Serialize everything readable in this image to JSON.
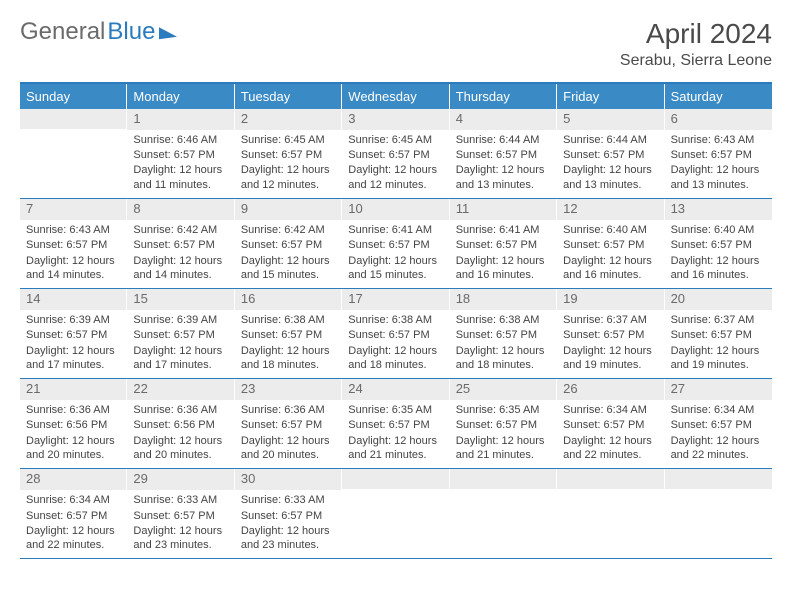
{
  "logo": {
    "text1": "General",
    "text2": "Blue"
  },
  "title": "April 2024",
  "location": "Serabu, Sierra Leone",
  "day_headers": [
    "Sunday",
    "Monday",
    "Tuesday",
    "Wednesday",
    "Thursday",
    "Friday",
    "Saturday"
  ],
  "colors": {
    "header_bg": "#3a8ac5",
    "border": "#2b7bbf",
    "daynum_bg": "#ececec",
    "text_gray": "#6a6a6a"
  },
  "weeks": [
    [
      {
        "n": "",
        "sr": "",
        "ss": "",
        "dl": ""
      },
      {
        "n": "1",
        "sr": "Sunrise: 6:46 AM",
        "ss": "Sunset: 6:57 PM",
        "dl": "Daylight: 12 hours and 11 minutes."
      },
      {
        "n": "2",
        "sr": "Sunrise: 6:45 AM",
        "ss": "Sunset: 6:57 PM",
        "dl": "Daylight: 12 hours and 12 minutes."
      },
      {
        "n": "3",
        "sr": "Sunrise: 6:45 AM",
        "ss": "Sunset: 6:57 PM",
        "dl": "Daylight: 12 hours and 12 minutes."
      },
      {
        "n": "4",
        "sr": "Sunrise: 6:44 AM",
        "ss": "Sunset: 6:57 PM",
        "dl": "Daylight: 12 hours and 13 minutes."
      },
      {
        "n": "5",
        "sr": "Sunrise: 6:44 AM",
        "ss": "Sunset: 6:57 PM",
        "dl": "Daylight: 12 hours and 13 minutes."
      },
      {
        "n": "6",
        "sr": "Sunrise: 6:43 AM",
        "ss": "Sunset: 6:57 PM",
        "dl": "Daylight: 12 hours and 13 minutes."
      }
    ],
    [
      {
        "n": "7",
        "sr": "Sunrise: 6:43 AM",
        "ss": "Sunset: 6:57 PM",
        "dl": "Daylight: 12 hours and 14 minutes."
      },
      {
        "n": "8",
        "sr": "Sunrise: 6:42 AM",
        "ss": "Sunset: 6:57 PM",
        "dl": "Daylight: 12 hours and 14 minutes."
      },
      {
        "n": "9",
        "sr": "Sunrise: 6:42 AM",
        "ss": "Sunset: 6:57 PM",
        "dl": "Daylight: 12 hours and 15 minutes."
      },
      {
        "n": "10",
        "sr": "Sunrise: 6:41 AM",
        "ss": "Sunset: 6:57 PM",
        "dl": "Daylight: 12 hours and 15 minutes."
      },
      {
        "n": "11",
        "sr": "Sunrise: 6:41 AM",
        "ss": "Sunset: 6:57 PM",
        "dl": "Daylight: 12 hours and 16 minutes."
      },
      {
        "n": "12",
        "sr": "Sunrise: 6:40 AM",
        "ss": "Sunset: 6:57 PM",
        "dl": "Daylight: 12 hours and 16 minutes."
      },
      {
        "n": "13",
        "sr": "Sunrise: 6:40 AM",
        "ss": "Sunset: 6:57 PM",
        "dl": "Daylight: 12 hours and 16 minutes."
      }
    ],
    [
      {
        "n": "14",
        "sr": "Sunrise: 6:39 AM",
        "ss": "Sunset: 6:57 PM",
        "dl": "Daylight: 12 hours and 17 minutes."
      },
      {
        "n": "15",
        "sr": "Sunrise: 6:39 AM",
        "ss": "Sunset: 6:57 PM",
        "dl": "Daylight: 12 hours and 17 minutes."
      },
      {
        "n": "16",
        "sr": "Sunrise: 6:38 AM",
        "ss": "Sunset: 6:57 PM",
        "dl": "Daylight: 12 hours and 18 minutes."
      },
      {
        "n": "17",
        "sr": "Sunrise: 6:38 AM",
        "ss": "Sunset: 6:57 PM",
        "dl": "Daylight: 12 hours and 18 minutes."
      },
      {
        "n": "18",
        "sr": "Sunrise: 6:38 AM",
        "ss": "Sunset: 6:57 PM",
        "dl": "Daylight: 12 hours and 18 minutes."
      },
      {
        "n": "19",
        "sr": "Sunrise: 6:37 AM",
        "ss": "Sunset: 6:57 PM",
        "dl": "Daylight: 12 hours and 19 minutes."
      },
      {
        "n": "20",
        "sr": "Sunrise: 6:37 AM",
        "ss": "Sunset: 6:57 PM",
        "dl": "Daylight: 12 hours and 19 minutes."
      }
    ],
    [
      {
        "n": "21",
        "sr": "Sunrise: 6:36 AM",
        "ss": "Sunset: 6:56 PM",
        "dl": "Daylight: 12 hours and 20 minutes."
      },
      {
        "n": "22",
        "sr": "Sunrise: 6:36 AM",
        "ss": "Sunset: 6:56 PM",
        "dl": "Daylight: 12 hours and 20 minutes."
      },
      {
        "n": "23",
        "sr": "Sunrise: 6:36 AM",
        "ss": "Sunset: 6:57 PM",
        "dl": "Daylight: 12 hours and 20 minutes."
      },
      {
        "n": "24",
        "sr": "Sunrise: 6:35 AM",
        "ss": "Sunset: 6:57 PM",
        "dl": "Daylight: 12 hours and 21 minutes."
      },
      {
        "n": "25",
        "sr": "Sunrise: 6:35 AM",
        "ss": "Sunset: 6:57 PM",
        "dl": "Daylight: 12 hours and 21 minutes."
      },
      {
        "n": "26",
        "sr": "Sunrise: 6:34 AM",
        "ss": "Sunset: 6:57 PM",
        "dl": "Daylight: 12 hours and 22 minutes."
      },
      {
        "n": "27",
        "sr": "Sunrise: 6:34 AM",
        "ss": "Sunset: 6:57 PM",
        "dl": "Daylight: 12 hours and 22 minutes."
      }
    ],
    [
      {
        "n": "28",
        "sr": "Sunrise: 6:34 AM",
        "ss": "Sunset: 6:57 PM",
        "dl": "Daylight: 12 hours and 22 minutes."
      },
      {
        "n": "29",
        "sr": "Sunrise: 6:33 AM",
        "ss": "Sunset: 6:57 PM",
        "dl": "Daylight: 12 hours and 23 minutes."
      },
      {
        "n": "30",
        "sr": "Sunrise: 6:33 AM",
        "ss": "Sunset: 6:57 PM",
        "dl": "Daylight: 12 hours and 23 minutes."
      },
      {
        "n": "",
        "sr": "",
        "ss": "",
        "dl": ""
      },
      {
        "n": "",
        "sr": "",
        "ss": "",
        "dl": ""
      },
      {
        "n": "",
        "sr": "",
        "ss": "",
        "dl": ""
      },
      {
        "n": "",
        "sr": "",
        "ss": "",
        "dl": ""
      }
    ]
  ]
}
